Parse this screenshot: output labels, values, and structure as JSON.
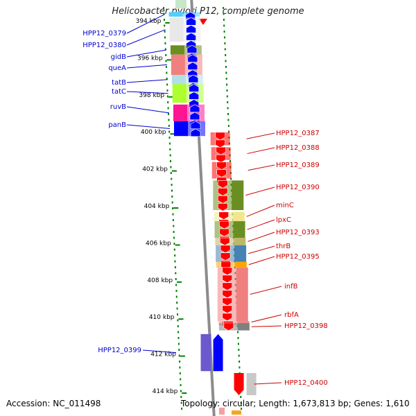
{
  "title": "Helicobacter pylori P12, complete genome",
  "accession": "Accession: NC_011498",
  "topology": "Topology: circular; Length: 1,673,813 bp; Genes: 1,610",
  "colors": {
    "forward_label": "#0000cc",
    "reverse_label": "#cc0000",
    "forward_arrow": "#0000ff",
    "reverse_arrow": "#ff0000",
    "backbone": "#8c8c8c",
    "tick": "#008000"
  },
  "ticks": [
    {
      "label": "394 kbp",
      "kbp": 394
    },
    {
      "label": "396 kbp",
      "kbp": 396
    },
    {
      "label": "398 kbp",
      "kbp": 398
    },
    {
      "label": "400 kbp",
      "kbp": 400
    },
    {
      "label": "402 kbp",
      "kbp": 402
    },
    {
      "label": "404 kbp",
      "kbp": 404
    },
    {
      "label": "406 kbp",
      "kbp": 406
    },
    {
      "label": "408 kbp",
      "kbp": 408
    },
    {
      "label": "410 kbp",
      "kbp": 410
    },
    {
      "label": "412 kbp",
      "kbp": 412
    },
    {
      "label": "414 kbp",
      "kbp": 414
    }
  ],
  "forward_genes": [
    {
      "label": "HPP12_0379",
      "start_kbp": 393.3,
      "end_kbp": 393.55,
      "color": "#4fd0ff"
    },
    {
      "label": "HPP12_0380",
      "start_kbp": 393.6,
      "end_kbp": 394.9,
      "color": "#e8e8e8"
    },
    {
      "label": "gidB",
      "start_kbp": 395.1,
      "end_kbp": 395.6,
      "color": "#6b8e23"
    },
    {
      "label": "queA",
      "start_kbp": 395.6,
      "end_kbp": 396.7,
      "color": "#f08080"
    },
    {
      "label": "tatB",
      "start_kbp": 396.7,
      "end_kbp": 397.2,
      "color": "#b0e0e6"
    },
    {
      "label": "tatC",
      "start_kbp": 397.2,
      "end_kbp": 398.2,
      "color": "#adff2f"
    },
    {
      "label": "ruvB",
      "start_kbp": 398.3,
      "end_kbp": 399.2,
      "color": "#ff1493"
    },
    {
      "label": "panB",
      "start_kbp": 399.2,
      "end_kbp": 400.0,
      "color": "#0000ff"
    },
    {
      "label": "HPP12_0399",
      "start_kbp": 410.7,
      "end_kbp": 412.7,
      "color": "#6a5acd"
    }
  ],
  "reverse_genes": [
    {
      "label": "HPP12_0387",
      "start_kbp": 399.8,
      "end_kbp": 400.5,
      "color": "#ff0000"
    },
    {
      "label": "HPP12_0388",
      "start_kbp": 400.6,
      "end_kbp": 401.3,
      "color": "#ff0000"
    },
    {
      "label": "HPP12_0389",
      "start_kbp": 401.4,
      "end_kbp": 402.3,
      "color": "#ff0000"
    },
    {
      "label": "HPP12_0390",
      "start_kbp": 402.4,
      "end_kbp": 404.0,
      "color": "#6b8e23"
    },
    {
      "label": "minC",
      "start_kbp": 404.1,
      "end_kbp": 404.6,
      "color": "#f0e68c"
    },
    {
      "label": "lpxC",
      "start_kbp": 404.6,
      "end_kbp": 405.5,
      "color": "#6b8e23"
    },
    {
      "label": "HPP12_0393",
      "start_kbp": 405.5,
      "end_kbp": 405.9,
      "color": "#bdb76b"
    },
    {
      "label": "thrB",
      "start_kbp": 405.9,
      "end_kbp": 406.8,
      "color": "#4682b4"
    },
    {
      "label": "HPP12_0395",
      "start_kbp": 406.8,
      "end_kbp": 407.1,
      "color": "#ffa500"
    },
    {
      "label": "infB",
      "start_kbp": 407.1,
      "end_kbp": 410.0,
      "color": "#f08080"
    },
    {
      "label": "rbfA",
      "start_kbp": 410.0,
      "end_kbp": 410.1,
      "color": "#f08080"
    },
    {
      "label": "HPP12_0398",
      "start_kbp": 410.1,
      "end_kbp": 410.5,
      "color": "#808080"
    },
    {
      "label": "HPP12_0400",
      "start_kbp": 412.8,
      "end_kbp": 414.0,
      "color": "#c8c8c8"
    }
  ]
}
